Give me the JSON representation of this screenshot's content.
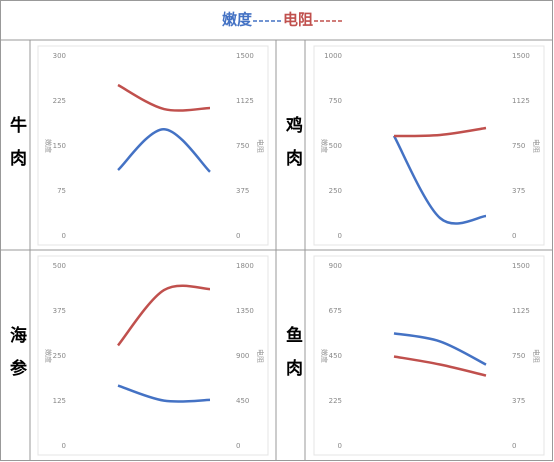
{
  "header": {
    "legend": [
      {
        "name": "嫩度",
        "color": "#4472c4"
      },
      {
        "name": "电阻",
        "color": "#c0504d"
      }
    ]
  },
  "chart_data": [
    {
      "type": "line",
      "panel_label": "牛肉",
      "ylabel": "嫩度",
      "y2label": "电阻",
      "categories": [
        null,
        null,
        null
      ],
      "ylim": [
        0,
        300
      ],
      "yticks": [
        0,
        75,
        150,
        225,
        300
      ],
      "y2lim": [
        0,
        1500
      ],
      "y2ticks": [
        0,
        375,
        750,
        1125,
        1500
      ],
      "series": [
        {
          "color": "#4472c4",
          "values": [
            110,
            178,
            107
          ]
        },
        {
          "color": "#c0504d",
          "axis": "y2",
          "values": [
            1258,
            1058,
            1067
          ]
        }
      ]
    },
    {
      "type": "line",
      "panel_label": "鸡肉",
      "ylabel": "嫩度",
      "y2label": "电阻",
      "categories": [
        null,
        null,
        null
      ],
      "ylim": [
        0,
        1000
      ],
      "yticks": [
        0,
        250,
        500,
        750,
        1000
      ],
      "y2lim": [
        0,
        1500
      ],
      "y2ticks": [
        0,
        375,
        750,
        1125,
        1500
      ],
      "series": [
        {
          "color": "#4472c4",
          "values": [
            556,
            100,
            111
          ]
        },
        {
          "color": "#c0504d",
          "axis": "y2",
          "values": [
            833,
            842,
            900
          ]
        }
      ]
    },
    {
      "type": "line",
      "panel_label": "海参",
      "ylabel": "嫩度",
      "y2label": "电阻",
      "categories": [
        null,
        null,
        null
      ],
      "ylim": [
        0,
        500
      ],
      "yticks": [
        0,
        125,
        250,
        375,
        500
      ],
      "y2lim": [
        0,
        1800
      ],
      "y2ticks": [
        0,
        450,
        900,
        1350,
        1800
      ],
      "series": [
        {
          "color": "#4472c4",
          "values": [
            168,
            126,
            128
          ]
        },
        {
          "color": "#c0504d",
          "axis": "y2",
          "values": [
            1006,
            1559,
            1569
          ]
        }
      ]
    },
    {
      "type": "line",
      "panel_label": "鱼肉",
      "ylabel": "嫩度",
      "y2label": "电阻",
      "categories": [
        null,
        null,
        null
      ],
      "ylim": [
        0,
        900
      ],
      "yticks": [
        0,
        225,
        450,
        675,
        900
      ],
      "y2lim": [
        0,
        1500
      ],
      "y2ticks": [
        0,
        375,
        750,
        1125,
        1500
      ],
      "series": [
        {
          "color": "#4472c4",
          "values": [
            563,
            523,
            407
          ]
        },
        {
          "color": "#c0504d",
          "axis": "y2",
          "values": [
            746,
            679,
            587
          ]
        }
      ]
    }
  ]
}
